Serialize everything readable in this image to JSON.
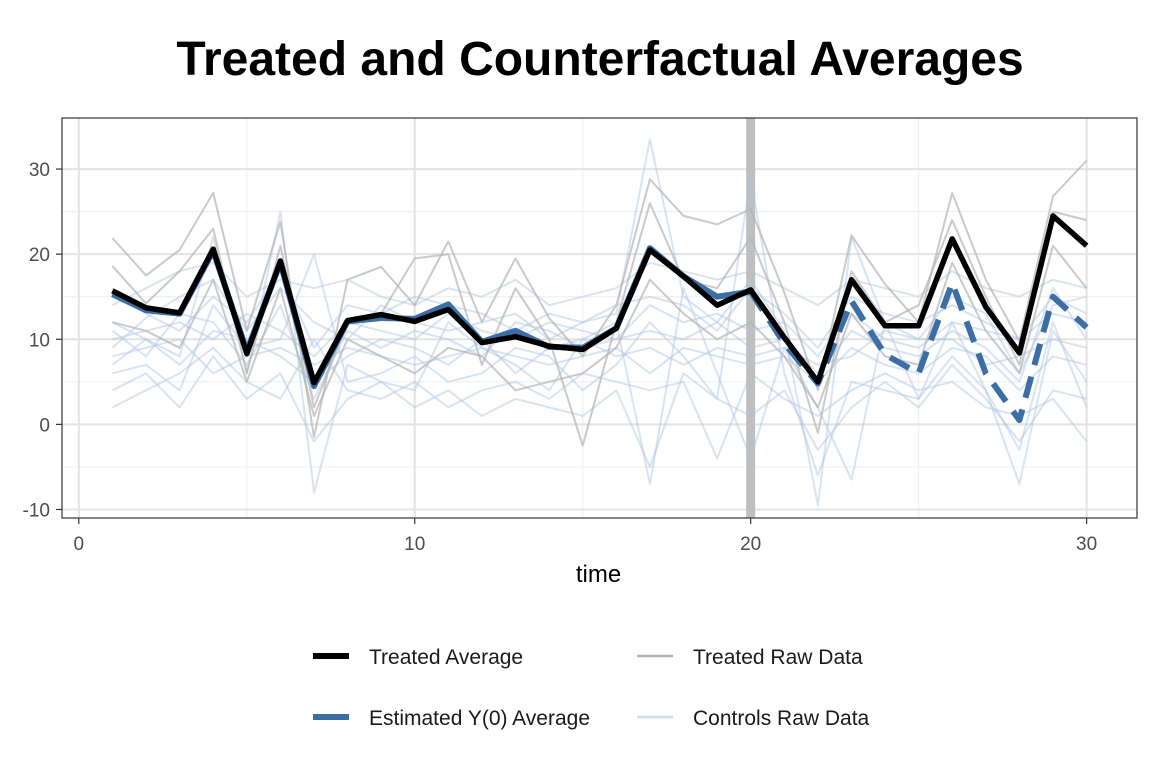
{
  "chart_data": {
    "type": "line",
    "title": "Treated and Counterfactual Averages",
    "xlabel": "time",
    "ylabel": "",
    "xlim": [
      -0.5,
      31.5
    ],
    "ylim": [
      -11,
      36
    ],
    "x_ticks": [
      0,
      10,
      20,
      30
    ],
    "y_ticks": [
      -10,
      0,
      10,
      20,
      30
    ],
    "grid": true,
    "treatment_time": 20,
    "treatment_line_color": "#bfbfbf",
    "legend_position": "bottom",
    "legend": [
      {
        "label": "Treated Average",
        "color": "#000000",
        "style": "thick-solid"
      },
      {
        "label": "Treated Raw Data",
        "color": "#b3b3b3",
        "style": "thin-solid"
      },
      {
        "label": "Estimated Y(0) Average",
        "color": "#3a6ea5",
        "style": "thick-solid"
      },
      {
        "label": "Controls Raw Data",
        "color": "#cfdff0",
        "style": "thin-solid"
      }
    ],
    "x": [
      1,
      2,
      3,
      4,
      5,
      6,
      7,
      8,
      9,
      10,
      11,
      12,
      13,
      14,
      15,
      16,
      17,
      18,
      19,
      20,
      21,
      22,
      23,
      24,
      25,
      26,
      27,
      28,
      29,
      30
    ],
    "series": [
      {
        "name": "Treated Average",
        "color": "#000000",
        "values": [
          15.7,
          13.7,
          13.1,
          20.6,
          8.3,
          19.2,
          4.9,
          12.2,
          12.9,
          12.1,
          13.5,
          9.6,
          10.3,
          9.2,
          8.8,
          11.3,
          20.5,
          17.4,
          14.0,
          15.8,
          10.2,
          5.0,
          17.0,
          11.6,
          11.6,
          21.8,
          13.8,
          8.4,
          24.5,
          21.0
        ]
      },
      {
        "name": "Estimated Y(0) Average",
        "color": "#3a6ea5",
        "values": [
          15.3,
          13.4,
          13.0,
          20.4,
          8.6,
          19.0,
          4.5,
          12.1,
          12.5,
          12.4,
          14.1,
          9.7,
          11.0,
          9.1,
          9.0,
          11.3,
          20.7,
          17.4,
          15.0,
          15.6,
          9.5,
          4.8,
          14.5,
          8.2,
          6.0,
          16.6,
          6.0,
          0.5,
          15.0,
          11.4
        ]
      },
      {
        "name": "Treated Raw Data",
        "color": "#b3b3b3",
        "values": [
          21.9,
          17.5,
          20.5,
          27.2,
          11.0,
          23.8,
          -1.5,
          17.0,
          18.5,
          14.0,
          21.5,
          12.0,
          19.5,
          12.5,
          8.0,
          14.0,
          28.8,
          24.5,
          23.5,
          25.3,
          15.5,
          4.0,
          22.2,
          16.5,
          12.0,
          27.2,
          17.0,
          9.8,
          26.8,
          31.0
        ]
      },
      {
        "name": "Treated Raw Data",
        "color": "#b3b3b3",
        "values": [
          18.6,
          14.2,
          18.0,
          23.0,
          6.0,
          21.0,
          2.0,
          12.0,
          13.0,
          19.5,
          20.0,
          7.0,
          16.0,
          10.0,
          -2.5,
          12.0,
          26.0,
          17.0,
          16.0,
          22.0,
          12.0,
          -1.0,
          18.0,
          12.0,
          14.0,
          24.0,
          15.0,
          7.0,
          25.0,
          24.0
        ]
      },
      {
        "name": "Treated Raw Data",
        "color": "#b3b3b3",
        "values": [
          12.0,
          11.0,
          9.0,
          17.0,
          5.0,
          16.0,
          1.0,
          10.0,
          8.0,
          6.0,
          9.0,
          8.0,
          4.0,
          5.0,
          6.0,
          9.0,
          17.0,
          13.0,
          10.0,
          12.0,
          8.0,
          2.0,
          13.0,
          8.0,
          7.0,
          19.0,
          11.0,
          6.0,
          21.0,
          16.0
        ]
      },
      {
        "name": "Controls Raw Data",
        "color": "#a9c4e2",
        "values": [
          12.0,
          10.0,
          8.0,
          22.0,
          6.0,
          25.0,
          -8.0,
          7.0,
          5.0,
          4.0,
          12.0,
          9.0,
          7.0,
          4.0,
          10.0,
          12.0,
          -7.0,
          16.0,
          6.0,
          -4.0,
          9.0,
          2.0,
          -6.5,
          12.0,
          3.0,
          12.0,
          4.0,
          -7.0,
          11.0,
          5.0
        ]
      },
      {
        "name": "Controls Raw Data",
        "color": "#a9c4e2",
        "values": [
          9.0,
          12.5,
          15.0,
          17.0,
          11.0,
          16.0,
          12.0,
          10.0,
          14.0,
          12.0,
          11.0,
          12.0,
          13.0,
          10.0,
          12.0,
          13.0,
          33.5,
          15.0,
          12.0,
          17.0,
          11.0,
          -9.5,
          22.0,
          12.0,
          10.0,
          15.0,
          13.0,
          6.0,
          14.0,
          15.0
        ]
      },
      {
        "name": "Controls Raw Data",
        "color": "#a9c4e2",
        "values": [
          6.0,
          7.0,
          4.0,
          14.0,
          9.0,
          10.0,
          20.0,
          5.0,
          6.0,
          8.0,
          5.0,
          6.0,
          9.0,
          8.0,
          4.0,
          7.0,
          12.0,
          8.0,
          3.0,
          29.0,
          6.0,
          -6.0,
          5.0,
          4.0,
          3.0,
          8.0,
          4.0,
          -3.0,
          12.0,
          2.0
        ]
      },
      {
        "name": "Controls Raw Data",
        "color": "#a9c4e2",
        "values": [
          10.0,
          11.0,
          12.0,
          10.0,
          13.0,
          11.0,
          8.0,
          12.0,
          11.0,
          10.0,
          13.0,
          11.0,
          10.0,
          12.0,
          11.0,
          10.0,
          14.0,
          12.0,
          13.0,
          11.0,
          12.0,
          8.0,
          13.0,
          10.0,
          9.0,
          12.0,
          11.0,
          10.0,
          13.0,
          12.0
        ]
      },
      {
        "name": "Controls Raw Data",
        "color": "#a9c4e2",
        "values": [
          4.0,
          6.0,
          2.0,
          8.0,
          3.0,
          6.0,
          -2.0,
          3.0,
          5.0,
          2.0,
          4.0,
          1.0,
          3.0,
          2.0,
          1.0,
          4.0,
          -5.0,
          6.0,
          3.0,
          1.0,
          4.0,
          -3.0,
          2.0,
          5.0,
          2.0,
          7.0,
          3.0,
          -2.0,
          4.0,
          3.0
        ]
      },
      {
        "name": "Controls Raw Data",
        "color": "#a9c4e2",
        "values": [
          14.0,
          16.0,
          18.0,
          19.0,
          15.0,
          17.0,
          16.0,
          17.0,
          15.0,
          14.0,
          16.0,
          15.0,
          17.0,
          14.0,
          15.0,
          16.0,
          19.0,
          18.0,
          17.0,
          18.0,
          16.0,
          14.0,
          17.0,
          16.0,
          15.0,
          18.0,
          16.0,
          15.0,
          17.0,
          16.0
        ]
      },
      {
        "name": "Controls Raw Data",
        "color": "#a9c4e2",
        "values": [
          8.0,
          9.0,
          10.0,
          6.0,
          8.0,
          9.0,
          7.0,
          9.0,
          8.0,
          7.0,
          8.0,
          9.0,
          8.0,
          7.0,
          8.0,
          9.0,
          6.0,
          9.0,
          8.0,
          7.0,
          8.0,
          5.0,
          9.0,
          7.0,
          6.0,
          9.0,
          8.0,
          4.0,
          8.0,
          7.0
        ]
      },
      {
        "name": "Controls Raw Data",
        "color": "#a9c4e2",
        "values": [
          11.0,
          8.0,
          13.0,
          12.0,
          7.0,
          14.0,
          3.0,
          11.0,
          9.0,
          11.0,
          10.0,
          8.0,
          12.0,
          11.0,
          9.0,
          10.0,
          11.0,
          10.0,
          12.0,
          9.0,
          10.0,
          6.0,
          11.0,
          9.0,
          8.0,
          11.0,
          9.0,
          5.0,
          16.0,
          10.0
        ]
      },
      {
        "name": "Controls Raw Data",
        "color": "#a9c4e2",
        "values": [
          2.0,
          4.0,
          6.0,
          9.0,
          5.0,
          3.0,
          10.0,
          4.0,
          3.0,
          5.0,
          2.0,
          4.0,
          5.0,
          3.0,
          6.0,
          5.0,
          4.0,
          5.0,
          -4.0,
          6.0,
          3.0,
          1.0,
          4.0,
          6.0,
          4.0,
          5.0,
          2.0,
          1.0,
          3.0,
          -2.0
        ]
      },
      {
        "name": "Controls Raw Data",
        "color": "#a9c4e2",
        "values": [
          16.0,
          13.0,
          11.0,
          15.0,
          12.0,
          18.0,
          9.0,
          14.0,
          13.0,
          15.0,
          14.0,
          13.0,
          11.0,
          13.0,
          12.0,
          14.0,
          15.0,
          14.0,
          11.0,
          16.0,
          13.0,
          9.0,
          15.0,
          13.0,
          12.0,
          14.0,
          12.0,
          10.0,
          15.0,
          13.0
        ]
      },
      {
        "name": "Controls Raw Data",
        "color": "#a9c4e2",
        "values": [
          7.0,
          10.0,
          7.0,
          11.0,
          10.0,
          8.0,
          5.0,
          8.0,
          10.0,
          9.0,
          7.0,
          10.0,
          6.0,
          9.0,
          10.0,
          8.0,
          9.0,
          7.0,
          9.0,
          8.0,
          9.0,
          7.0,
          8.0,
          11.0,
          10.0,
          10.0,
          7.0,
          8.0,
          10.0,
          9.0
        ]
      }
    ]
  }
}
